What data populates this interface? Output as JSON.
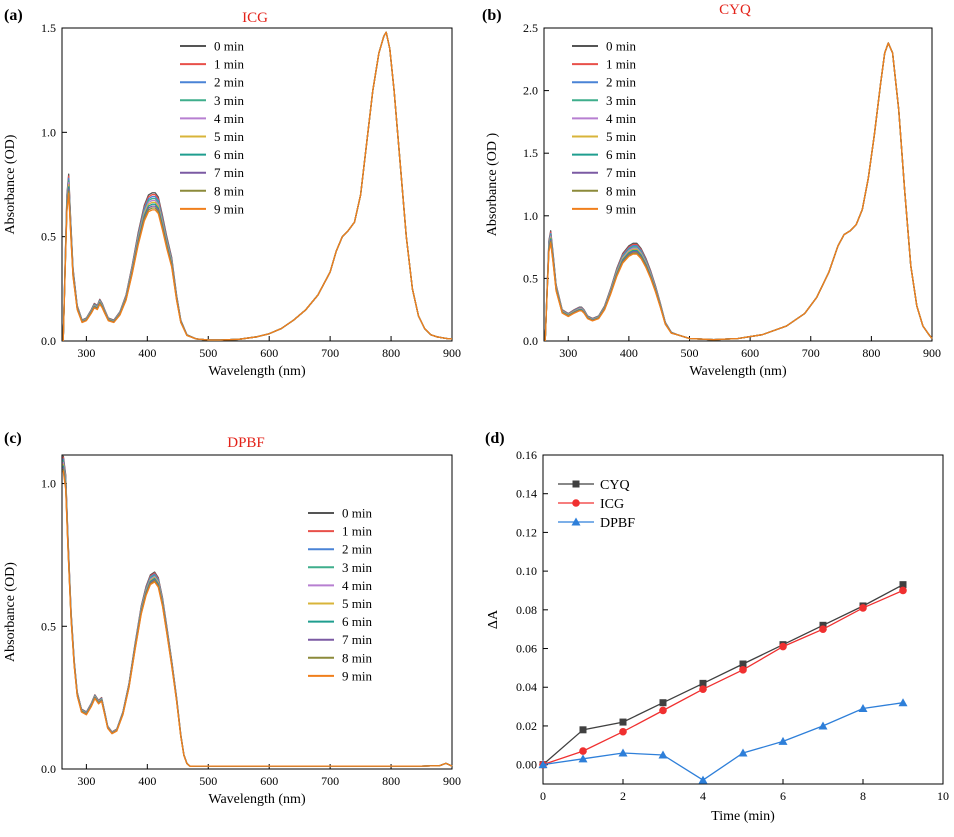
{
  "figure": {
    "panels": [
      {
        "label": "(a)",
        "title": "ICG"
      },
      {
        "label": "(b)",
        "title": "CYQ"
      },
      {
        "label": "(c)",
        "title": "DPBF"
      },
      {
        "label": "(d)",
        "title": ""
      }
    ]
  },
  "colors": {
    "time_series": [
      "#555555",
      "#e8504a",
      "#4a83d6",
      "#3fae8c",
      "#b77fd1",
      "#d8b43a",
      "#1f9e8f",
      "#7b5aa3",
      "#8c8a3a",
      "#f07f1c"
    ],
    "CYQ": "#404040",
    "ICG": "#f03030",
    "DPBF": "#2e7fd9"
  },
  "chart_data": [
    {
      "type": "line",
      "panel": "(a)",
      "title": "ICG",
      "xlabel": "Wavelength (nm)",
      "ylabel": "Absorbance (OD)",
      "xlim": [
        260,
        900
      ],
      "ylim": [
        0,
        1.5
      ],
      "xticks": [
        300,
        400,
        500,
        600,
        700,
        800,
        900
      ],
      "yticks": [
        0.0,
        0.5,
        1.0,
        1.5
      ],
      "ytick_labels": [
        "0.0",
        "0.5",
        "1.0",
        "1.5"
      ],
      "legend_position": "upper-left",
      "series_names": [
        "0 min",
        "1 min",
        "2 min",
        "3 min",
        "4 min",
        "5 min",
        "6 min",
        "7 min",
        "8 min",
        "9 min"
      ],
      "series_scale": {
        "uv_region_end_nm": 470,
        "scale_start": 1.0,
        "scale_end": 0.885
      },
      "x": [
        262,
        265,
        268,
        271,
        274,
        278,
        285,
        293,
        300,
        308,
        313,
        318,
        322,
        326,
        330,
        336,
        345,
        355,
        365,
        375,
        385,
        395,
        402,
        408,
        413,
        418,
        425,
        432,
        440,
        448,
        455,
        465,
        480,
        500,
        520,
        550,
        580,
        600,
        620,
        640,
        660,
        680,
        700,
        710,
        720,
        730,
        740,
        750,
        760,
        770,
        780,
        788,
        792,
        798,
        805,
        815,
        825,
        835,
        845,
        855,
        865,
        875,
        885,
        895,
        900
      ],
      "y": [
        0.0,
        0.35,
        0.7,
        0.8,
        0.6,
        0.35,
        0.17,
        0.1,
        0.11,
        0.15,
        0.18,
        0.17,
        0.2,
        0.18,
        0.15,
        0.11,
        0.1,
        0.14,
        0.22,
        0.36,
        0.52,
        0.65,
        0.7,
        0.71,
        0.71,
        0.69,
        0.6,
        0.5,
        0.4,
        0.22,
        0.1,
        0.03,
        0.01,
        0.005,
        0.005,
        0.008,
        0.02,
        0.035,
        0.06,
        0.1,
        0.15,
        0.22,
        0.33,
        0.43,
        0.5,
        0.53,
        0.57,
        0.7,
        0.95,
        1.2,
        1.38,
        1.46,
        1.48,
        1.4,
        1.2,
        0.85,
        0.5,
        0.25,
        0.12,
        0.06,
        0.03,
        0.02,
        0.015,
        0.01,
        0.01
      ]
    },
    {
      "type": "line",
      "panel": "(b)",
      "title": "CYQ",
      "xlabel": "Wavelength (nm)",
      "ylabel": "Absorbance (OD )",
      "xlim": [
        260,
        900
      ],
      "ylim": [
        0,
        2.5
      ],
      "xticks": [
        300,
        400,
        500,
        600,
        700,
        800,
        900
      ],
      "yticks": [
        0.0,
        0.5,
        1.0,
        1.5,
        2.0,
        2.5
      ],
      "ytick_labels": [
        "0.0",
        "0.5",
        "1.0",
        "1.5",
        "2.0",
        "2.5"
      ],
      "legend_position": "upper-left",
      "series_names": [
        "0 min",
        "1 min",
        "2 min",
        "3 min",
        "4 min",
        "5 min",
        "6 min",
        "7 min",
        "8 min",
        "9 min"
      ],
      "series_scale": {
        "uv_region_end_nm": 470,
        "scale_start": 1.0,
        "scale_end": 0.89
      },
      "x": [
        262,
        265,
        268,
        271,
        275,
        280,
        290,
        300,
        310,
        318,
        322,
        326,
        332,
        340,
        350,
        360,
        370,
        380,
        390,
        400,
        407,
        413,
        420,
        428,
        436,
        444,
        452,
        460,
        470,
        480,
        500,
        540,
        580,
        620,
        660,
        690,
        710,
        730,
        745,
        755,
        765,
        775,
        785,
        795,
        805,
        815,
        822,
        828,
        835,
        845,
        855,
        865,
        875,
        885,
        895,
        900
      ],
      "y": [
        0.0,
        0.4,
        0.8,
        0.88,
        0.7,
        0.45,
        0.25,
        0.22,
        0.25,
        0.27,
        0.27,
        0.25,
        0.2,
        0.18,
        0.2,
        0.28,
        0.42,
        0.58,
        0.7,
        0.76,
        0.78,
        0.78,
        0.74,
        0.66,
        0.56,
        0.44,
        0.3,
        0.15,
        0.07,
        0.05,
        0.02,
        0.01,
        0.02,
        0.05,
        0.12,
        0.22,
        0.35,
        0.55,
        0.76,
        0.85,
        0.88,
        0.93,
        1.05,
        1.3,
        1.65,
        2.05,
        2.3,
        2.38,
        2.3,
        1.85,
        1.2,
        0.6,
        0.28,
        0.12,
        0.05,
        0.02
      ]
    },
    {
      "type": "line",
      "panel": "(c)",
      "title": "DPBF",
      "xlabel": "Wavelength (nm)",
      "ylabel": "Absorbance (OD)",
      "xlim": [
        260,
        900
      ],
      "ylim": [
        0,
        1.1
      ],
      "xticks": [
        300,
        400,
        500,
        600,
        700,
        800,
        900
      ],
      "yticks": [
        0.0,
        0.5,
        1.0
      ],
      "ytick_labels": [
        "0.0",
        "0.5",
        "1.0"
      ],
      "legend_position": "right",
      "series_names": [
        "0 min",
        "1 min",
        "2 min",
        "3 min",
        "4 min",
        "5 min",
        "6 min",
        "7 min",
        "8 min",
        "9 min"
      ],
      "series_scale": {
        "uv_region_end_nm": 470,
        "scale_start": 1.0,
        "scale_end": 0.95
      },
      "x": [
        262,
        266,
        270,
        275,
        280,
        285,
        292,
        300,
        308,
        314,
        320,
        325,
        330,
        335,
        342,
        350,
        360,
        370,
        380,
        390,
        398,
        405,
        412,
        418,
        425,
        432,
        440,
        448,
        455,
        460,
        465,
        470,
        480,
        500,
        550,
        600,
        650,
        700,
        750,
        800,
        850,
        880,
        890,
        895,
        900
      ],
      "y": [
        1.1,
        1.03,
        0.8,
        0.55,
        0.38,
        0.27,
        0.21,
        0.2,
        0.23,
        0.26,
        0.24,
        0.25,
        0.2,
        0.15,
        0.13,
        0.14,
        0.2,
        0.3,
        0.44,
        0.57,
        0.64,
        0.68,
        0.69,
        0.67,
        0.6,
        0.5,
        0.38,
        0.25,
        0.12,
        0.05,
        0.02,
        0.01,
        0.01,
        0.01,
        0.01,
        0.01,
        0.01,
        0.01,
        0.01,
        0.01,
        0.01,
        0.012,
        0.02,
        0.015,
        0.01
      ]
    },
    {
      "type": "line",
      "panel": "(d)",
      "title": "",
      "xlabel": "Time (min)",
      "ylabel": "ΔA",
      "xlim": [
        0,
        10
      ],
      "ylim": [
        -0.01,
        0.16
      ],
      "xticks": [
        0,
        2,
        4,
        6,
        8,
        10
      ],
      "yticks": [
        0.0,
        0.02,
        0.04,
        0.06,
        0.08,
        0.1,
        0.12,
        0.14,
        0.16
      ],
      "ytick_labels": [
        "0.00",
        "0.02",
        "0.04",
        "0.06",
        "0.08",
        "0.10",
        "0.12",
        "0.14",
        "0.16"
      ],
      "legend_position": "upper-left",
      "x": [
        0,
        1,
        2,
        3,
        4,
        5,
        6,
        7,
        8,
        9
      ],
      "series": [
        {
          "name": "CYQ",
          "marker": "square",
          "values": [
            0.0,
            0.018,
            0.022,
            0.032,
            0.042,
            0.052,
            0.062,
            0.072,
            0.082,
            0.093
          ]
        },
        {
          "name": "ICG",
          "marker": "circle",
          "values": [
            0.0,
            0.007,
            0.017,
            0.028,
            0.039,
            0.049,
            0.061,
            0.07,
            0.081,
            0.09
          ]
        },
        {
          "name": "DPBF",
          "marker": "triangle",
          "values": [
            0.0,
            0.003,
            0.006,
            0.005,
            -0.008,
            0.006,
            0.012,
            0.02,
            0.029,
            0.032
          ]
        }
      ]
    }
  ]
}
